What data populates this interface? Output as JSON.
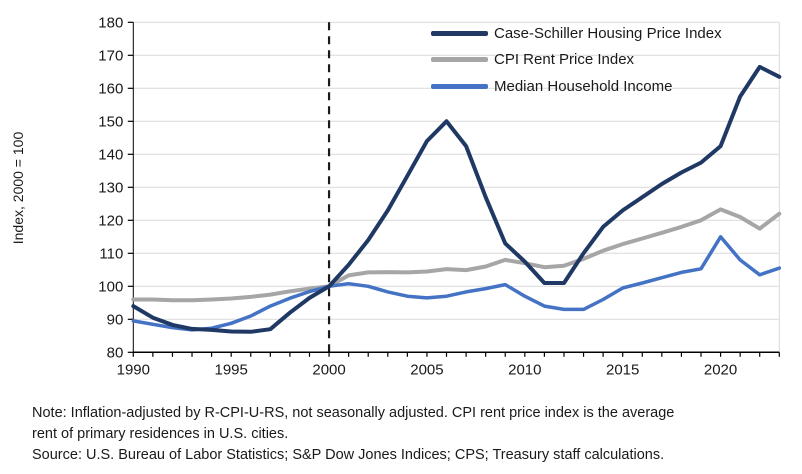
{
  "chart_data": {
    "type": "line",
    "title": "",
    "ylabel": "Index, 2000 = 100",
    "xlabel": "",
    "xlim": [
      1990,
      2023
    ],
    "ylim": [
      80,
      180
    ],
    "y_tick_step": 10,
    "x_tick_labels": [
      "1990",
      "1995",
      "2000",
      "2005",
      "2010",
      "2015",
      "2020"
    ],
    "x_tick_values": [
      1990,
      1995,
      2000,
      2005,
      2010,
      2015,
      2020
    ],
    "grid": "horizontal",
    "legend_position": "top-right",
    "reference_line": {
      "x": 2000,
      "style": "dashed",
      "color": "#1a1a1a"
    },
    "x": [
      1990,
      1991,
      1992,
      1993,
      1994,
      1995,
      1996,
      1997,
      1998,
      1999,
      2000,
      2001,
      2002,
      2003,
      2004,
      2005,
      2006,
      2007,
      2008,
      2009,
      2010,
      2011,
      2012,
      2013,
      2014,
      2015,
      2016,
      2017,
      2018,
      2019,
      2020,
      2021,
      2022,
      2023
    ],
    "series": [
      {
        "name": "Case-Schiller Housing Price Index",
        "color": "#1f3864",
        "width": 4,
        "values": [
          94,
          90.5,
          88.3,
          87.1,
          86.8,
          86.3,
          86.2,
          87,
          92,
          96.5,
          100,
          106.5,
          114,
          123,
          133.5,
          144,
          150,
          142.5,
          127,
          113,
          107.5,
          101,
          101,
          110,
          118,
          123,
          127,
          131,
          134.5,
          137.5,
          142.5,
          157.5,
          166.5,
          163.5
        ]
      },
      {
        "name": "CPI Rent Price Index",
        "color": "#a6a6a6",
        "width": 4,
        "values": [
          96,
          96,
          95.8,
          95.8,
          96,
          96.3,
          96.8,
          97.5,
          98.5,
          99.3,
          100,
          103.3,
          104.2,
          104.3,
          104.2,
          104.5,
          105.2,
          104.9,
          106,
          108,
          107,
          105.8,
          106.2,
          108.3,
          110.8,
          112.8,
          114.5,
          116.2,
          118,
          120,
          123.3,
          121,
          117.5,
          122
        ]
      },
      {
        "name": "Median Household Income",
        "color": "#4472c4",
        "width": 3.5,
        "values": [
          89.5,
          88.5,
          87.5,
          86.8,
          87.3,
          88.8,
          91,
          94,
          96.4,
          98.4,
          100,
          100.8,
          100,
          98.3,
          97,
          96.5,
          97,
          98.3,
          99.3,
          100.5,
          97,
          94,
          93,
          93,
          96,
          99.5,
          101,
          102.6,
          104.2,
          105.3,
          115,
          108,
          103.5,
          105.5
        ]
      }
    ]
  },
  "axis": {
    "ylabel": "Index, 2000 = 100"
  },
  "notes": {
    "note_line1": "Note: Inflation-adjusted by R-CPI-U-RS, not seasonally adjusted. CPI rent price index is the average",
    "note_line2": "rent of primary residences in U.S. cities.",
    "source": "Source: U.S. Bureau of Labor Statistics; S&P Dow Jones Indices; CPS; Treasury staff calculations."
  },
  "colors": {
    "gridline": "#d9d9d9",
    "axis": "#000000",
    "text": "#1a1a1a",
    "background": "#ffffff"
  }
}
